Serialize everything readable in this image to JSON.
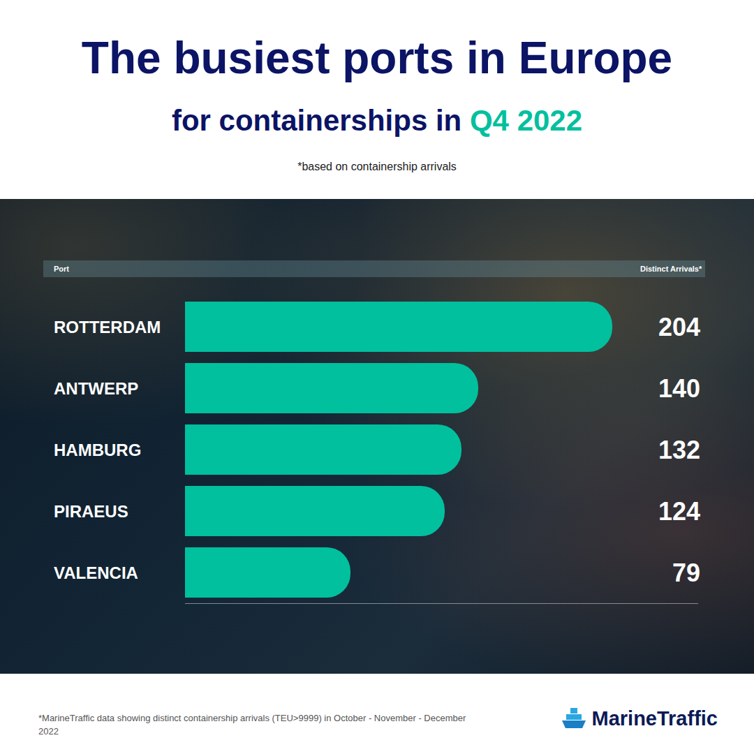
{
  "chart_data": {
    "type": "bar",
    "orientation": "horizontal",
    "title": "The busiest ports in Europe",
    "subtitle": [
      "for containerships in ",
      "Q4 2022"
    ],
    "annotations": [
      "*based on containership arrivals"
    ],
    "y_label": "Port",
    "x_label": "Distinct Arrivals*",
    "footnote": "*MarineTraffic data showing distinct containership arrivals (TEU>9999) in October - November - December 2022",
    "source": "MarineTraffic",
    "categories": [
      "ROTTERDAM",
      "ANTWERP",
      "HAMBURG",
      "PIRAEUS",
      "VALENCIA"
    ],
    "values": [
      204,
      140,
      132,
      124,
      79
    ],
    "color": "#00c09e",
    "xlim": [
      0,
      245
    ],
    "data_labels": true,
    "tick_labels": "y",
    "grid": false
  }
}
